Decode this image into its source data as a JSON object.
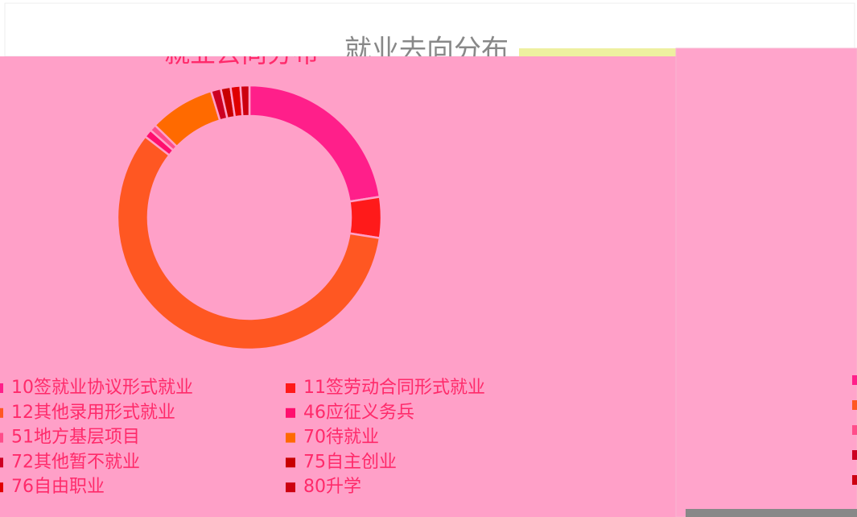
{
  "chart_data": {
    "type": "donut",
    "title": "就业去向分布",
    "categories": [
      "10签就业协议形式就业",
      "11签劳动合同形式就业",
      "12其他录用形式就业",
      "46应征义务兵",
      "51地方基层项目",
      "70待就业",
      "72其他暂不就业",
      "75自主创业",
      "76自由职业",
      "80升学"
    ],
    "values": [
      22.5,
      5,
      58,
      1,
      0.8,
      8,
      1.2,
      1.2,
      1.2,
      1.1
    ],
    "colors": [
      "#ff1f8a",
      "#ff1a1a",
      "#ff5722",
      "#ff0f6e",
      "#ff4d8a",
      "#ff6a00",
      "#cc0022",
      "#c80000",
      "#e00000",
      "#cc0010"
    ]
  }
}
